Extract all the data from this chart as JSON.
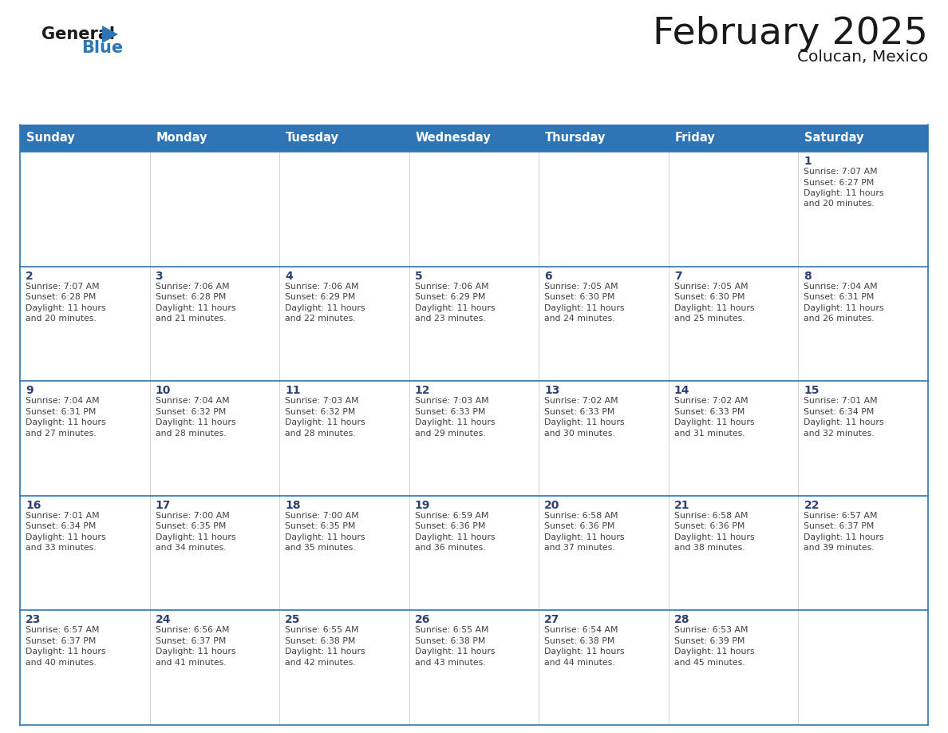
{
  "title": "February 2025",
  "subtitle": "Colucan, Mexico",
  "header_bg": "#2E75B6",
  "header_text_color": "#FFFFFF",
  "day_number_color": "#2E4070",
  "cell_text_color": "#404040",
  "border_color": "#2E75B6",
  "grid_line_color": "#AAAAAA",
  "days_of_week": [
    "Sunday",
    "Monday",
    "Tuesday",
    "Wednesday",
    "Thursday",
    "Friday",
    "Saturday"
  ],
  "calendar_data": [
    [
      null,
      null,
      null,
      null,
      null,
      null,
      {
        "day": 1,
        "sunrise": "7:07 AM",
        "sunset": "6:27 PM",
        "daylight": "11 hours and 20 minutes."
      }
    ],
    [
      {
        "day": 2,
        "sunrise": "7:07 AM",
        "sunset": "6:28 PM",
        "daylight": "11 hours and 20 minutes."
      },
      {
        "day": 3,
        "sunrise": "7:06 AM",
        "sunset": "6:28 PM",
        "daylight": "11 hours and 21 minutes."
      },
      {
        "day": 4,
        "sunrise": "7:06 AM",
        "sunset": "6:29 PM",
        "daylight": "11 hours and 22 minutes."
      },
      {
        "day": 5,
        "sunrise": "7:06 AM",
        "sunset": "6:29 PM",
        "daylight": "11 hours and 23 minutes."
      },
      {
        "day": 6,
        "sunrise": "7:05 AM",
        "sunset": "6:30 PM",
        "daylight": "11 hours and 24 minutes."
      },
      {
        "day": 7,
        "sunrise": "7:05 AM",
        "sunset": "6:30 PM",
        "daylight": "11 hours and 25 minutes."
      },
      {
        "day": 8,
        "sunrise": "7:04 AM",
        "sunset": "6:31 PM",
        "daylight": "11 hours and 26 minutes."
      }
    ],
    [
      {
        "day": 9,
        "sunrise": "7:04 AM",
        "sunset": "6:31 PM",
        "daylight": "11 hours and 27 minutes."
      },
      {
        "day": 10,
        "sunrise": "7:04 AM",
        "sunset": "6:32 PM",
        "daylight": "11 hours and 28 minutes."
      },
      {
        "day": 11,
        "sunrise": "7:03 AM",
        "sunset": "6:32 PM",
        "daylight": "11 hours and 28 minutes."
      },
      {
        "day": 12,
        "sunrise": "7:03 AM",
        "sunset": "6:33 PM",
        "daylight": "11 hours and 29 minutes."
      },
      {
        "day": 13,
        "sunrise": "7:02 AM",
        "sunset": "6:33 PM",
        "daylight": "11 hours and 30 minutes."
      },
      {
        "day": 14,
        "sunrise": "7:02 AM",
        "sunset": "6:33 PM",
        "daylight": "11 hours and 31 minutes."
      },
      {
        "day": 15,
        "sunrise": "7:01 AM",
        "sunset": "6:34 PM",
        "daylight": "11 hours and 32 minutes."
      }
    ],
    [
      {
        "day": 16,
        "sunrise": "7:01 AM",
        "sunset": "6:34 PM",
        "daylight": "11 hours and 33 minutes."
      },
      {
        "day": 17,
        "sunrise": "7:00 AM",
        "sunset": "6:35 PM",
        "daylight": "11 hours and 34 minutes."
      },
      {
        "day": 18,
        "sunrise": "7:00 AM",
        "sunset": "6:35 PM",
        "daylight": "11 hours and 35 minutes."
      },
      {
        "day": 19,
        "sunrise": "6:59 AM",
        "sunset": "6:36 PM",
        "daylight": "11 hours and 36 minutes."
      },
      {
        "day": 20,
        "sunrise": "6:58 AM",
        "sunset": "6:36 PM",
        "daylight": "11 hours and 37 minutes."
      },
      {
        "day": 21,
        "sunrise": "6:58 AM",
        "sunset": "6:36 PM",
        "daylight": "11 hours and 38 minutes."
      },
      {
        "day": 22,
        "sunrise": "6:57 AM",
        "sunset": "6:37 PM",
        "daylight": "11 hours and 39 minutes."
      }
    ],
    [
      {
        "day": 23,
        "sunrise": "6:57 AM",
        "sunset": "6:37 PM",
        "daylight": "11 hours and 40 minutes."
      },
      {
        "day": 24,
        "sunrise": "6:56 AM",
        "sunset": "6:37 PM",
        "daylight": "11 hours and 41 minutes."
      },
      {
        "day": 25,
        "sunrise": "6:55 AM",
        "sunset": "6:38 PM",
        "daylight": "11 hours and 42 minutes."
      },
      {
        "day": 26,
        "sunrise": "6:55 AM",
        "sunset": "6:38 PM",
        "daylight": "11 hours and 43 minutes."
      },
      {
        "day": 27,
        "sunrise": "6:54 AM",
        "sunset": "6:38 PM",
        "daylight": "11 hours and 44 minutes."
      },
      {
        "day": 28,
        "sunrise": "6:53 AM",
        "sunset": "6:39 PM",
        "daylight": "11 hours and 45 minutes."
      },
      null
    ]
  ]
}
